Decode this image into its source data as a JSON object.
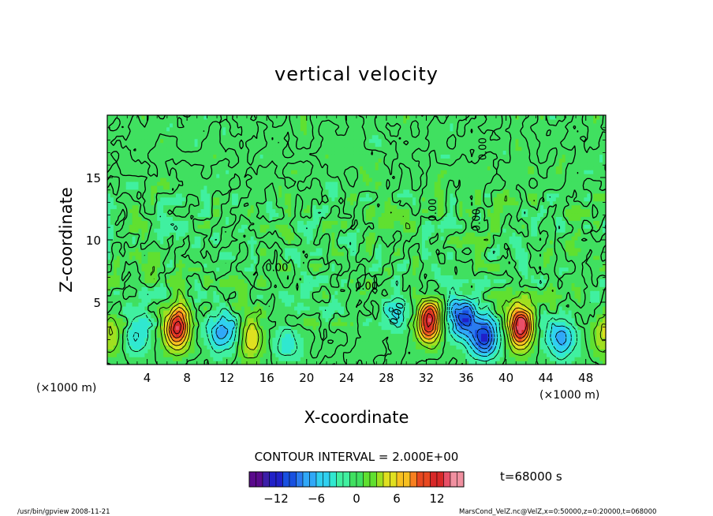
{
  "chart_data": {
    "type": "heatmap",
    "title": "vertical velocity",
    "xlabel": "X-coordinate",
    "ylabel": "Z-coordinate",
    "x_unit_left": "(×1000 m)",
    "x_unit_right": "(×1000 m)",
    "xlim": [
      0,
      50
    ],
    "ylim": [
      0,
      20
    ],
    "xticks": [
      "4",
      "8",
      "12",
      "16",
      "20",
      "24",
      "28",
      "32",
      "36",
      "40",
      "44",
      "48"
    ],
    "yticks": [
      "5",
      "10",
      "15"
    ],
    "contour_labels": [
      "0.00",
      "0.00",
      "0.00",
      "0.00",
      "0.00",
      "0.00"
    ],
    "contour_interval": "CONTOUR INTERVAL = 2.000E+00",
    "time_label": "t=68000 s",
    "colorbar": {
      "range": [
        -16,
        16
      ],
      "ticks": [
        "−12",
        "−6",
        "0",
        "6",
        "12"
      ],
      "colors": [
        "#5a0a8c",
        "#3c1ea8",
        "#2020c8",
        "#1850e0",
        "#2a7cf0",
        "#30a8f8",
        "#30d0f0",
        "#30e8d0",
        "#40f0a0",
        "#40e060",
        "#60e030",
        "#a0e020",
        "#e0e020",
        "#f8c020",
        "#f88020",
        "#e84820",
        "#d82828",
        "#e85068",
        "#f090a0"
      ]
    },
    "features": [
      {
        "x": 0.4,
        "z": 2.4,
        "w": 4.5,
        "kind": "updraft"
      },
      {
        "x": 2.9,
        "z": 2.3,
        "w": -4.5,
        "kind": "downdraft"
      },
      {
        "x": 7.0,
        "z": 3.0,
        "w": 13.5,
        "kind": "updraft"
      },
      {
        "x": 11.5,
        "z": 2.7,
        "w": -7.5,
        "kind": "downdraft"
      },
      {
        "x": 14.5,
        "z": 2.1,
        "w": 6.0,
        "kind": "updraft"
      },
      {
        "x": 18.0,
        "z": 1.8,
        "w": -3.5,
        "kind": "downdraft"
      },
      {
        "x": 29.0,
        "z": 4.3,
        "w": -5.0,
        "kind": "downdraft"
      },
      {
        "x": 32.3,
        "z": 3.5,
        "w": 14.0,
        "kind": "updraft"
      },
      {
        "x": 35.6,
        "z": 3.8,
        "w": -11.0,
        "kind": "downdraft"
      },
      {
        "x": 37.8,
        "z": 2.2,
        "w": -11.5,
        "kind": "downdraft"
      },
      {
        "x": 41.5,
        "z": 3.0,
        "w": 14.0,
        "kind": "updraft"
      },
      {
        "x": 45.5,
        "z": 2.2,
        "w": -7.0,
        "kind": "downdraft"
      },
      {
        "x": 50.0,
        "z": 2.5,
        "w": 5.0,
        "kind": "updraft"
      }
    ]
  },
  "footer": {
    "left": "/usr/bin/gpview  2008-11-21",
    "right": "MarsCond_VelZ.nc@VelZ,x=0:50000,z=0:20000,t=068000"
  }
}
